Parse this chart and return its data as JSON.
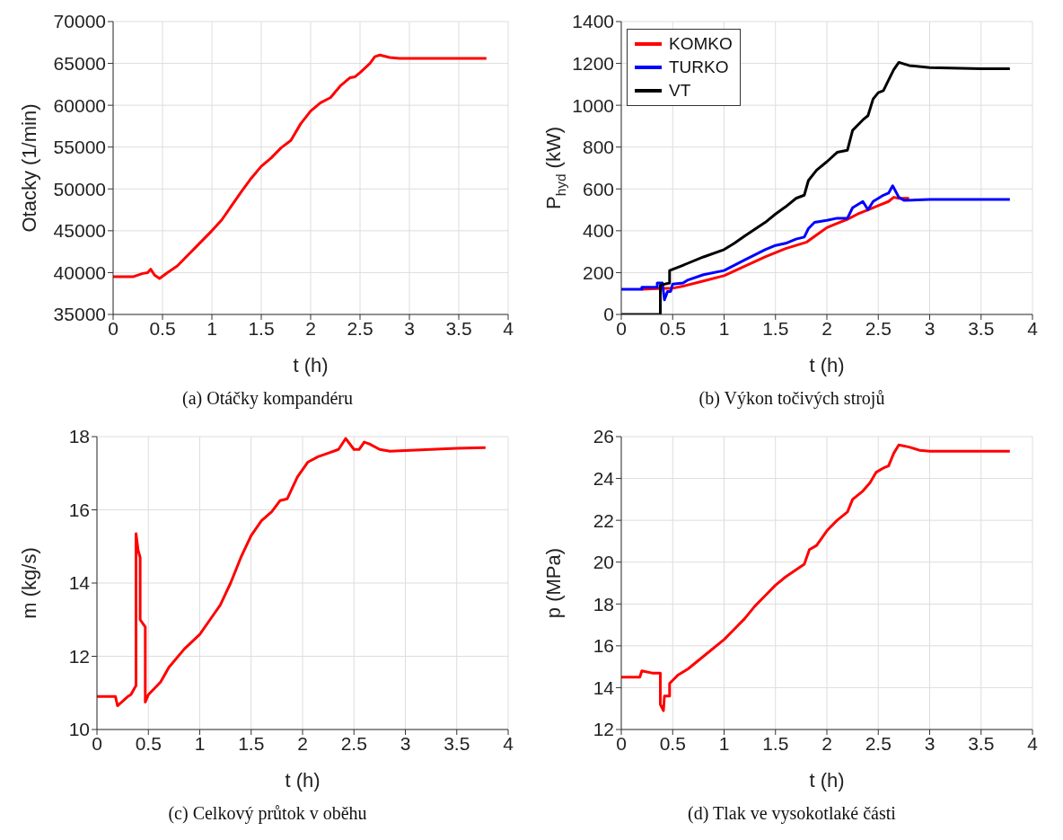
{
  "chart_data": [
    {
      "type": "line",
      "title": "(a) Otáčky kompandéru",
      "xlabel": "t (h)",
      "ylabel": "Otacky (1/min)",
      "xlim": [
        0,
        4
      ],
      "xticks": [
        0,
        0.5,
        1,
        1.5,
        2,
        2.5,
        3,
        3.5,
        4
      ],
      "ylim": [
        35000,
        70000
      ],
      "yticks": [
        35000,
        40000,
        45000,
        50000,
        55000,
        60000,
        65000,
        70000
      ],
      "grid": true,
      "legend": false,
      "series": [
        {
          "color": "#ff0000",
          "x": [
            0,
            0.2,
            0.3,
            0.35,
            0.38,
            0.42,
            0.47,
            0.55,
            0.65,
            0.75,
            0.85,
            1.0,
            1.1,
            1.2,
            1.3,
            1.4,
            1.5,
            1.6,
            1.7,
            1.8,
            1.9,
            2.0,
            2.1,
            2.2,
            2.3,
            2.4,
            2.45,
            2.5,
            2.6,
            2.65,
            2.7,
            2.8,
            2.9,
            3.0,
            3.5,
            3.78
          ],
          "values": [
            39500,
            39500,
            39900,
            40000,
            40400,
            39700,
            39300,
            40000,
            40800,
            42000,
            43200,
            45000,
            46300,
            48000,
            49700,
            51300,
            52700,
            53700,
            54900,
            55800,
            57800,
            59300,
            60300,
            60900,
            62300,
            63300,
            63400,
            63900,
            65000,
            65800,
            66000,
            65700,
            65600,
            65600,
            65600,
            65600
          ]
        }
      ]
    },
    {
      "type": "line",
      "title": "(b) Výkon točivých strojů",
      "xlabel": "t (h)",
      "ylabel": "P$_{hyd}$ (kW)",
      "xlim": [
        0,
        4
      ],
      "xticks": [
        0,
        0.5,
        1,
        1.5,
        2,
        2.5,
        3,
        3.5,
        4
      ],
      "ylim": [
        0,
        1400
      ],
      "yticks": [
        0,
        200,
        400,
        600,
        800,
        1000,
        1200,
        1400
      ],
      "grid": true,
      "legend": "top left",
      "series": [
        {
          "name": "KOMKO",
          "color": "#ff0000",
          "x": [
            0.2,
            0.4,
            0.5,
            0.6,
            0.8,
            1.0,
            1.2,
            1.4,
            1.6,
            1.8,
            1.9,
            2.0,
            2.1,
            2.2,
            2.3,
            2.4,
            2.5,
            2.6,
            2.65,
            2.7,
            2.8
          ],
          "values": [
            120,
            125,
            125,
            135,
            160,
            185,
            230,
            275,
            315,
            345,
            380,
            415,
            435,
            455,
            480,
            500,
            520,
            540,
            560,
            555,
            555
          ]
        },
        {
          "name": "TURKO",
          "color": "#0000ff",
          "x": [
            0,
            0.2,
            0.2,
            0.35,
            0.35,
            0.4,
            0.42,
            0.45,
            0.48,
            0.5,
            0.6,
            0.65,
            0.8,
            1.0,
            1.2,
            1.4,
            1.5,
            1.6,
            1.7,
            1.78,
            1.82,
            1.88,
            2.0,
            2.1,
            2.2,
            2.25,
            2.35,
            2.4,
            2.45,
            2.55,
            2.6,
            2.64,
            2.7,
            2.75,
            3.0,
            3.78
          ],
          "values": [
            120,
            120,
            130,
            130,
            150,
            150,
            70,
            110,
            110,
            145,
            150,
            165,
            190,
            210,
            260,
            310,
            330,
            340,
            360,
            370,
            410,
            440,
            450,
            460,
            460,
            510,
            540,
            500,
            540,
            570,
            580,
            615,
            560,
            545,
            550,
            550
          ]
        },
        {
          "name": "VT",
          "color": "#000000",
          "x": [
            0,
            0.38,
            0.38,
            0.47,
            0.47,
            0.6,
            0.8,
            1.0,
            1.1,
            1.2,
            1.4,
            1.5,
            1.6,
            1.7,
            1.78,
            1.82,
            1.9,
            2.0,
            2.1,
            2.2,
            2.25,
            2.35,
            2.4,
            2.45,
            2.5,
            2.55,
            2.6,
            2.65,
            2.7,
            2.8,
            3.0,
            3.5,
            3.78
          ],
          "values": [
            0,
            0,
            140,
            150,
            210,
            235,
            275,
            310,
            340,
            375,
            440,
            480,
            515,
            555,
            570,
            640,
            690,
            730,
            775,
            785,
            880,
            930,
            950,
            1030,
            1060,
            1070,
            1120,
            1170,
            1205,
            1190,
            1180,
            1175,
            1175
          ]
        }
      ]
    },
    {
      "type": "line",
      "title": "(c) Celkový průtok v oběhu",
      "xlabel": "t (h)",
      "ylabel": "m (kg/s)",
      "xlim": [
        0,
        4
      ],
      "xticks": [
        0,
        0.5,
        1,
        1.5,
        2,
        2.5,
        3,
        3.5,
        4
      ],
      "ylim": [
        10,
        18
      ],
      "yticks": [
        10,
        12,
        14,
        16,
        18
      ],
      "grid": true,
      "legend": false,
      "series": [
        {
          "color": "#ff0000",
          "x": [
            0,
            0.18,
            0.2,
            0.3,
            0.33,
            0.38,
            0.38,
            0.4,
            0.42,
            0.42,
            0.47,
            0.47,
            0.5,
            0.62,
            0.7,
            0.85,
            1.0,
            1.1,
            1.2,
            1.3,
            1.4,
            1.5,
            1.6,
            1.7,
            1.78,
            1.85,
            1.95,
            2.05,
            2.15,
            2.25,
            2.35,
            2.42,
            2.5,
            2.55,
            2.6,
            2.65,
            2.75,
            2.85,
            3.0,
            3.5,
            3.78
          ],
          "values": [
            10.9,
            10.9,
            10.65,
            10.9,
            10.95,
            11.2,
            15.35,
            14.9,
            14.7,
            13,
            12.8,
            10.75,
            10.95,
            11.3,
            11.7,
            12.2,
            12.6,
            13.0,
            13.4,
            14.0,
            14.7,
            15.3,
            15.7,
            15.95,
            16.25,
            16.3,
            16.9,
            17.3,
            17.45,
            17.55,
            17.65,
            17.95,
            17.65,
            17.65,
            17.85,
            17.8,
            17.65,
            17.6,
            17.62,
            17.68,
            17.7
          ]
        }
      ]
    },
    {
      "type": "line",
      "title": "(d) Tlak ve vysokotlaké části",
      "xlabel": "t (h)",
      "ylabel": "p (MPa)",
      "xlim": [
        0,
        4
      ],
      "xticks": [
        0,
        0.5,
        1,
        1.5,
        2,
        2.5,
        3,
        3.5,
        4
      ],
      "ylim": [
        12,
        26
      ],
      "yticks": [
        12,
        14,
        16,
        18,
        20,
        22,
        24,
        26
      ],
      "grid": true,
      "legend": false,
      "series": [
        {
          "color": "#ff0000",
          "x": [
            0,
            0.18,
            0.2,
            0.3,
            0.38,
            0.38,
            0.41,
            0.42,
            0.47,
            0.47,
            0.55,
            0.65,
            0.8,
            1.0,
            1.1,
            1.2,
            1.3,
            1.4,
            1.5,
            1.6,
            1.78,
            1.83,
            1.9,
            2.0,
            2.1,
            2.2,
            2.25,
            2.35,
            2.42,
            2.48,
            2.55,
            2.6,
            2.65,
            2.7,
            2.8,
            2.9,
            3.0,
            3.78
          ],
          "values": [
            14.5,
            14.5,
            14.8,
            14.7,
            14.7,
            13.2,
            12.9,
            13.6,
            13.6,
            14.2,
            14.6,
            14.9,
            15.5,
            16.3,
            16.8,
            17.3,
            17.9,
            18.4,
            18.9,
            19.3,
            19.9,
            20.6,
            20.8,
            21.5,
            22.0,
            22.4,
            23.0,
            23.4,
            23.8,
            24.3,
            24.5,
            24.6,
            25.2,
            25.6,
            25.5,
            25.35,
            25.3,
            25.3
          ]
        }
      ]
    }
  ]
}
